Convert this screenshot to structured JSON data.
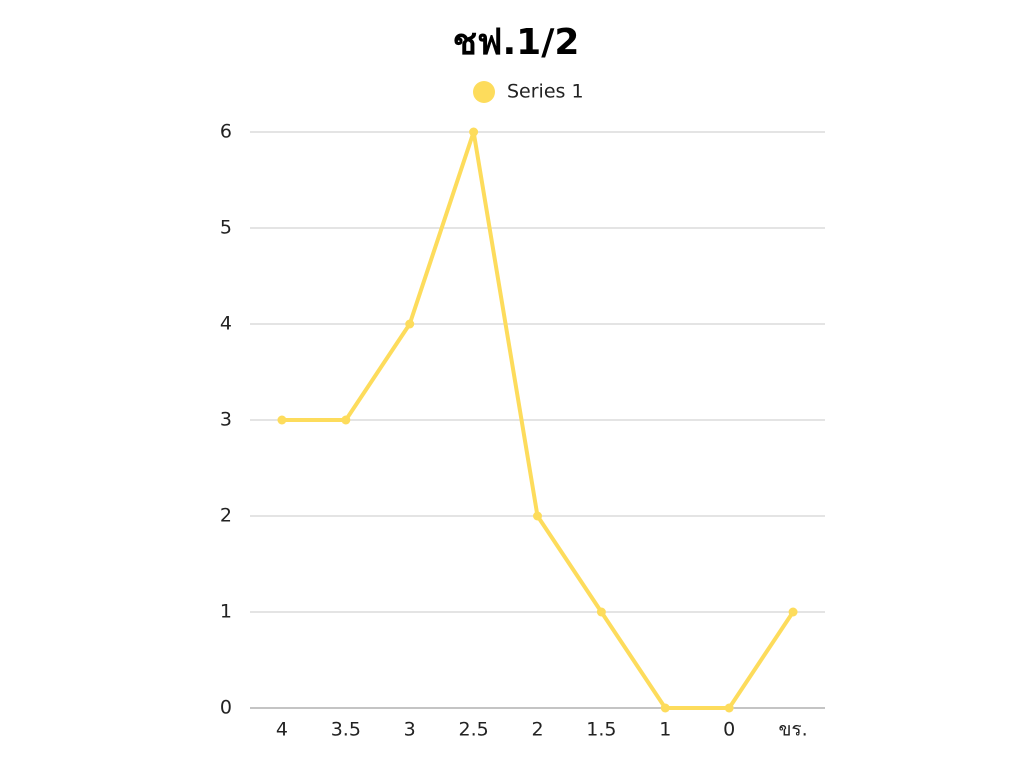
{
  "chart_data": {
    "type": "line",
    "title": "ชฟ.1/2",
    "categories": [
      "4",
      "3.5",
      "3",
      "2.5",
      "2",
      "1.5",
      "1",
      "0",
      "ขร."
    ],
    "series": [
      {
        "name": "Series 1",
        "color": "#fddc5c",
        "values": [
          3,
          3,
          4,
          6,
          2,
          1,
          0,
          0,
          1
        ]
      }
    ],
    "ylim": [
      0,
      6
    ],
    "yticks": [
      0,
      1,
      2,
      3,
      4,
      5,
      6
    ],
    "grid": true,
    "legend": "top"
  }
}
